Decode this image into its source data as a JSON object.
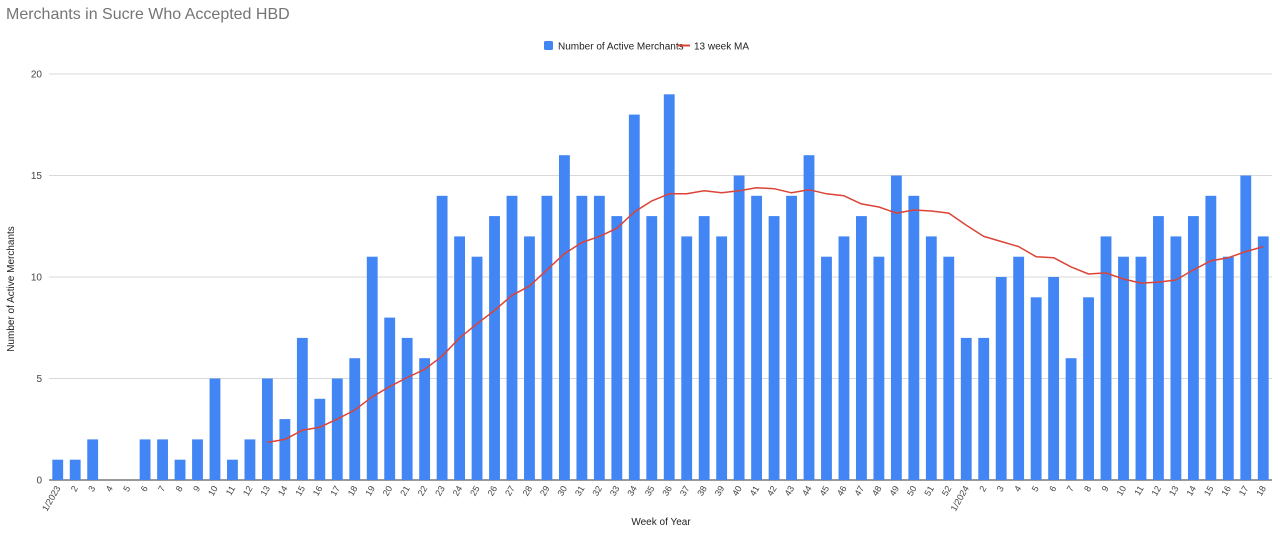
{
  "chart_data": {
    "type": "bar",
    "title": "Merchants in Sucre Who Accepted HBD",
    "xlabel": "Week of Year",
    "ylabel": "Number of Active Merchants",
    "ylim": [
      0,
      20
    ],
    "yticks": [
      0,
      5,
      10,
      15,
      20
    ],
    "grid": true,
    "legend_position": "top",
    "categories": [
      "1/2023",
      "2",
      "3",
      "4",
      "5",
      "6",
      "7",
      "8",
      "9",
      "10",
      "11",
      "12",
      "13",
      "14",
      "15",
      "16",
      "17",
      "18",
      "19",
      "20",
      "21",
      "22",
      "23",
      "24",
      "25",
      "26",
      "27",
      "28",
      "29",
      "30",
      "31",
      "32",
      "33",
      "34",
      "35",
      "36",
      "37",
      "38",
      "39",
      "40",
      "41",
      "42",
      "43",
      "44",
      "45",
      "46",
      "47",
      "48",
      "49",
      "50",
      "51",
      "52",
      "1/2024",
      "2",
      "3",
      "4",
      "5",
      "6",
      "7",
      "8",
      "9",
      "10",
      "11",
      "12",
      "13",
      "14",
      "15",
      "16",
      "17",
      "18"
    ],
    "series": [
      {
        "name": "Number of Active Merchants",
        "type": "bar",
        "color": "#4285f4",
        "values": [
          1,
          1,
          2,
          0,
          0,
          2,
          2,
          1,
          2,
          5,
          1,
          2,
          5,
          3,
          7,
          4,
          5,
          6,
          11,
          8,
          7,
          6,
          14,
          12,
          11,
          13,
          14,
          12,
          14,
          16,
          14,
          14,
          13,
          18,
          13,
          19,
          12,
          13,
          12,
          15,
          14,
          13,
          14,
          16,
          11,
          12,
          13,
          11,
          15,
          14,
          12,
          11,
          7,
          7,
          10,
          11,
          9,
          10,
          6,
          9,
          12,
          11,
          11,
          13,
          12,
          13,
          14,
          11,
          15,
          12
        ]
      },
      {
        "name": "13 week MA",
        "type": "line",
        "color": "#db4437",
        "values": [
          null,
          null,
          null,
          null,
          null,
          null,
          null,
          null,
          null,
          null,
          null,
          null,
          1.85,
          2.0,
          2.45,
          2.6,
          3.0,
          3.45,
          4.1,
          4.6,
          5.05,
          5.45,
          6.1,
          7.0,
          7.7,
          8.35,
          9.1,
          9.55,
          10.35,
          11.15,
          11.7,
          12.0,
          12.4,
          13.2,
          13.75,
          14.1,
          14.1,
          14.25,
          14.15,
          14.25,
          14.4,
          14.35,
          14.15,
          14.3,
          14.1,
          14.0,
          13.6,
          13.45,
          13.15,
          13.3,
          13.25,
          13.15,
          12.55,
          12.0,
          11.75,
          11.5,
          11.0,
          10.95,
          10.5,
          10.15,
          10.2,
          9.9,
          9.7,
          9.75,
          9.85,
          10.35,
          10.8,
          10.95,
          11.25,
          11.5
        ]
      }
    ]
  }
}
